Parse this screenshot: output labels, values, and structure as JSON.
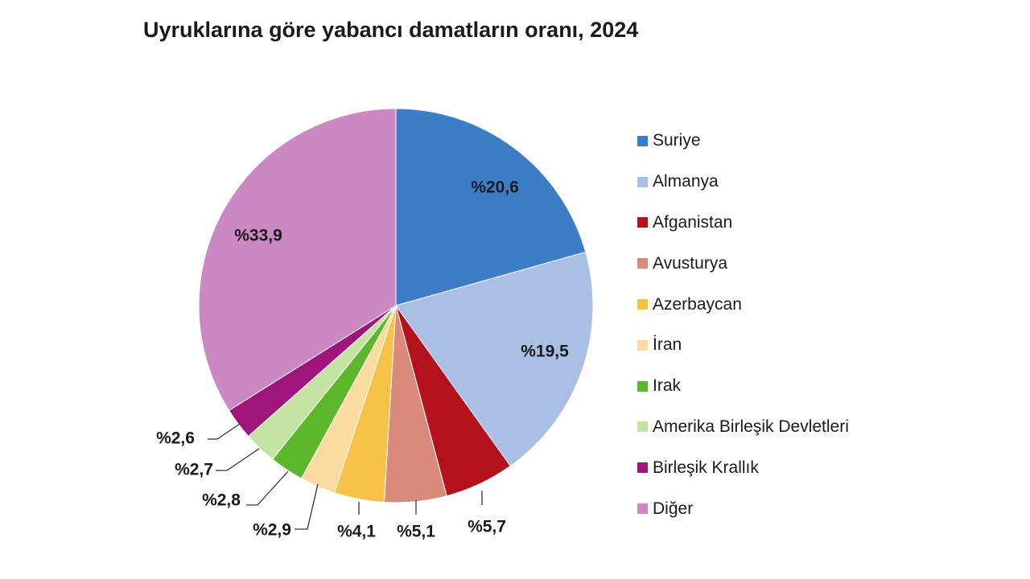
{
  "chart_data": {
    "type": "pie",
    "title": "Uyruklarına göre yabancı damatların oranı, 2024",
    "slices": [
      {
        "name": "Suriye",
        "value": 20.6,
        "label": "%20,6",
        "color": "#3b7dc6"
      },
      {
        "name": "Almanya",
        "value": 19.5,
        "label": "%19,5",
        "color": "#a9bfe3"
      },
      {
        "name": "Afganistan",
        "value": 5.7,
        "label": "%5,7",
        "color": "#b3121c"
      },
      {
        "name": "Avusturya",
        "value": 5.1,
        "label": "%5,1",
        "color": "#d98a7a"
      },
      {
        "name": "Azerbaycan",
        "value": 4.1,
        "label": "%4,1",
        "color": "#f7c248"
      },
      {
        "name": "İran",
        "value": 2.9,
        "label": "%2,9",
        "color": "#fbdba0"
      },
      {
        "name": "Irak",
        "value": 2.8,
        "label": "%2,8",
        "color": "#5cb82a"
      },
      {
        "name": "Amerika Birleşik Devletleri",
        "value": 2.7,
        "label": "%2,7",
        "color": "#c4e3a3"
      },
      {
        "name": "Birleşik Krallık",
        "value": 2.6,
        "label": "%2,6",
        "color": "#a0157a"
      },
      {
        "name": "Diğer",
        "value": 33.9,
        "label": "%33,9",
        "color": "#cc88c3"
      }
    ],
    "legend_position": "right"
  }
}
